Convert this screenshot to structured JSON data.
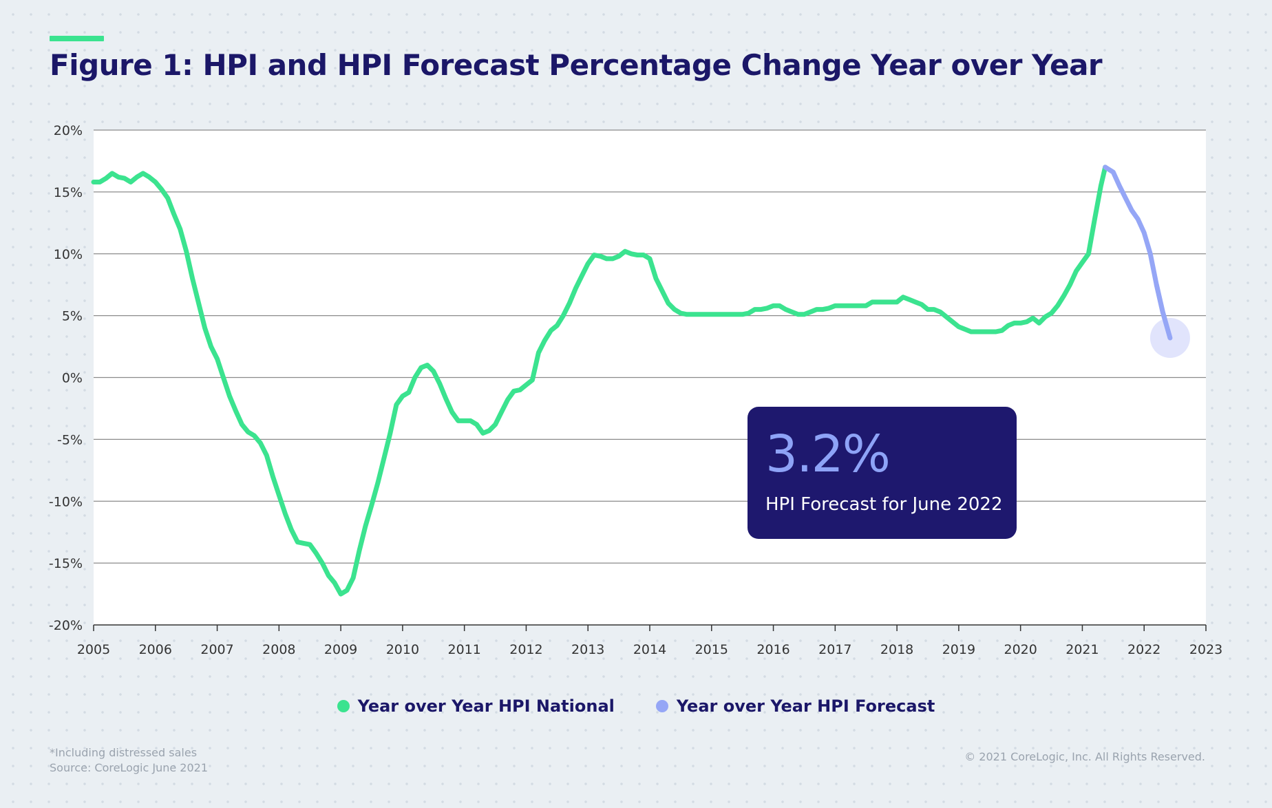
{
  "title": "Figure 1: HPI and HPI Forecast Percentage Change Year over Year",
  "callout": {
    "value": "3.2%",
    "caption": "HPI Forecast for June 2022"
  },
  "legend": [
    {
      "label": "Year over Year HPI National",
      "color": "#3be38f"
    },
    {
      "label": "Year over Year HPI Forecast",
      "color": "#95a6f6"
    }
  ],
  "footnote": {
    "line1": "*Including distressed sales",
    "line2": "Source: CoreLogic June 2021"
  },
  "copyright": "© 2021 CoreLogic, Inc. All Rights Reserved.",
  "colors": {
    "navy": "#1b1768",
    "accent_green": "#3be38f",
    "forecast_purple": "#95a6f6",
    "callout_bg": "#1e186e"
  },
  "chart_data": {
    "type": "line",
    "title": "Figure 1: HPI and HPI Forecast Percentage Change Year over Year",
    "xlim": [
      2005,
      2023
    ],
    "ylim": [
      -20,
      20
    ],
    "grid": "horizontal",
    "legend_position": "bottom-center",
    "x_ticks": [
      2005,
      2006,
      2007,
      2008,
      2009,
      2010,
      2011,
      2012,
      2013,
      2014,
      2015,
      2016,
      2017,
      2018,
      2019,
      2020,
      2021,
      2022,
      2023
    ],
    "x_tick_labels": [
      "2005",
      "2006",
      "2007",
      "2008",
      "2009",
      "2010",
      "2011",
      "2012",
      "2013",
      "2014",
      "2015",
      "2016",
      "2017",
      "2018",
      "2019",
      "2020",
      "2021",
      "2022",
      "2023"
    ],
    "y_ticks": [
      20,
      15,
      10,
      5,
      0,
      -5,
      -10,
      -15,
      -20
    ],
    "y_tick_labels": [
      "20%",
      "15%",
      "10%",
      "5%",
      "0%",
      "-5%",
      "-10%",
      "-15%",
      "-20%"
    ],
    "series": [
      {
        "name": "Year over Year HPI National",
        "color": "#3be38f",
        "points": [
          [
            2005.0,
            15.8
          ],
          [
            2005.1,
            15.8
          ],
          [
            2005.2,
            16.1
          ],
          [
            2005.3,
            16.5
          ],
          [
            2005.4,
            16.2
          ],
          [
            2005.5,
            16.1
          ],
          [
            2005.6,
            15.8
          ],
          [
            2005.7,
            16.2
          ],
          [
            2005.8,
            16.5
          ],
          [
            2005.9,
            16.2
          ],
          [
            2006.0,
            15.8
          ],
          [
            2006.1,
            15.2
          ],
          [
            2006.2,
            14.5
          ],
          [
            2006.3,
            13.2
          ],
          [
            2006.4,
            12.0
          ],
          [
            2006.5,
            10.2
          ],
          [
            2006.6,
            8.0
          ],
          [
            2006.7,
            6.0
          ],
          [
            2006.8,
            4.0
          ],
          [
            2006.9,
            2.5
          ],
          [
            2007.0,
            1.5
          ],
          [
            2007.1,
            0.0
          ],
          [
            2007.2,
            -1.5
          ],
          [
            2007.3,
            -2.7
          ],
          [
            2007.4,
            -3.8
          ],
          [
            2007.5,
            -4.4
          ],
          [
            2007.6,
            -4.7
          ],
          [
            2007.7,
            -5.3
          ],
          [
            2007.8,
            -6.3
          ],
          [
            2007.9,
            -8.0
          ],
          [
            2008.0,
            -9.5
          ],
          [
            2008.1,
            -11.0
          ],
          [
            2008.2,
            -12.3
          ],
          [
            2008.3,
            -13.3
          ],
          [
            2008.4,
            -13.4
          ],
          [
            2008.5,
            -13.5
          ],
          [
            2008.6,
            -14.2
          ],
          [
            2008.7,
            -15.0
          ],
          [
            2008.8,
            -16.0
          ],
          [
            2008.9,
            -16.6
          ],
          [
            2009.0,
            -17.5
          ],
          [
            2009.1,
            -17.2
          ],
          [
            2009.2,
            -16.2
          ],
          [
            2009.3,
            -14.0
          ],
          [
            2009.4,
            -12.0
          ],
          [
            2009.5,
            -10.3
          ],
          [
            2009.6,
            -8.5
          ],
          [
            2009.7,
            -6.5
          ],
          [
            2009.8,
            -4.5
          ],
          [
            2009.9,
            -2.2
          ],
          [
            2010.0,
            -1.5
          ],
          [
            2010.1,
            -1.2
          ],
          [
            2010.2,
            0.0
          ],
          [
            2010.3,
            0.8
          ],
          [
            2010.4,
            1.0
          ],
          [
            2010.5,
            0.5
          ],
          [
            2010.6,
            -0.5
          ],
          [
            2010.7,
            -1.7
          ],
          [
            2010.8,
            -2.8
          ],
          [
            2010.9,
            -3.5
          ],
          [
            2011.0,
            -3.5
          ],
          [
            2011.1,
            -3.5
          ],
          [
            2011.2,
            -3.8
          ],
          [
            2011.3,
            -4.5
          ],
          [
            2011.4,
            -4.3
          ],
          [
            2011.5,
            -3.8
          ],
          [
            2011.6,
            -2.8
          ],
          [
            2011.7,
            -1.8
          ],
          [
            2011.8,
            -1.1
          ],
          [
            2011.9,
            -1.0
          ],
          [
            2012.0,
            -0.6
          ],
          [
            2012.1,
            -0.2
          ],
          [
            2012.2,
            2.0
          ],
          [
            2012.3,
            3.0
          ],
          [
            2012.4,
            3.8
          ],
          [
            2012.5,
            4.2
          ],
          [
            2012.6,
            5.0
          ],
          [
            2012.7,
            6.0
          ],
          [
            2012.8,
            7.2
          ],
          [
            2012.9,
            8.2
          ],
          [
            2013.0,
            9.2
          ],
          [
            2013.1,
            9.9
          ],
          [
            2013.2,
            9.8
          ],
          [
            2013.3,
            9.6
          ],
          [
            2013.4,
            9.6
          ],
          [
            2013.5,
            9.8
          ],
          [
            2013.6,
            10.2
          ],
          [
            2013.7,
            10.0
          ],
          [
            2013.8,
            9.9
          ],
          [
            2013.9,
            9.9
          ],
          [
            2014.0,
            9.6
          ],
          [
            2014.1,
            8.0
          ],
          [
            2014.2,
            7.0
          ],
          [
            2014.3,
            6.0
          ],
          [
            2014.4,
            5.5
          ],
          [
            2014.5,
            5.2
          ],
          [
            2014.6,
            5.1
          ],
          [
            2014.7,
            5.1
          ],
          [
            2014.8,
            5.1
          ],
          [
            2014.9,
            5.1
          ],
          [
            2015.0,
            5.1
          ],
          [
            2015.2,
            5.1
          ],
          [
            2015.4,
            5.1
          ],
          [
            2015.5,
            5.1
          ],
          [
            2015.6,
            5.2
          ],
          [
            2015.7,
            5.5
          ],
          [
            2015.8,
            5.5
          ],
          [
            2015.9,
            5.6
          ],
          [
            2016.0,
            5.8
          ],
          [
            2016.1,
            5.8
          ],
          [
            2016.2,
            5.5
          ],
          [
            2016.3,
            5.3
          ],
          [
            2016.4,
            5.1
          ],
          [
            2016.5,
            5.1
          ],
          [
            2016.6,
            5.3
          ],
          [
            2016.7,
            5.5
          ],
          [
            2016.8,
            5.5
          ],
          [
            2016.9,
            5.6
          ],
          [
            2017.0,
            5.8
          ],
          [
            2017.1,
            5.8
          ],
          [
            2017.2,
            5.8
          ],
          [
            2017.3,
            5.8
          ],
          [
            2017.4,
            5.8
          ],
          [
            2017.5,
            5.8
          ],
          [
            2017.6,
            6.1
          ],
          [
            2017.7,
            6.1
          ],
          [
            2017.8,
            6.1
          ],
          [
            2017.9,
            6.1
          ],
          [
            2018.0,
            6.1
          ],
          [
            2018.1,
            6.5
          ],
          [
            2018.2,
            6.3
          ],
          [
            2018.3,
            6.1
          ],
          [
            2018.4,
            5.9
          ],
          [
            2018.5,
            5.5
          ],
          [
            2018.6,
            5.5
          ],
          [
            2018.7,
            5.3
          ],
          [
            2018.8,
            4.9
          ],
          [
            2018.9,
            4.5
          ],
          [
            2019.0,
            4.1
          ],
          [
            2019.1,
            3.9
          ],
          [
            2019.2,
            3.7
          ],
          [
            2019.3,
            3.7
          ],
          [
            2019.4,
            3.7
          ],
          [
            2019.5,
            3.7
          ],
          [
            2019.6,
            3.7
          ],
          [
            2019.7,
            3.8
          ],
          [
            2019.8,
            4.2
          ],
          [
            2019.9,
            4.4
          ],
          [
            2020.0,
            4.4
          ],
          [
            2020.1,
            4.5
          ],
          [
            2020.2,
            4.8
          ],
          [
            2020.3,
            4.4
          ],
          [
            2020.4,
            4.9
          ],
          [
            2020.5,
            5.2
          ],
          [
            2020.6,
            5.8
          ],
          [
            2020.7,
            6.6
          ],
          [
            2020.8,
            7.5
          ],
          [
            2020.9,
            8.6
          ],
          [
            2021.0,
            9.3
          ],
          [
            2021.1,
            10.0
          ],
          [
            2021.2,
            12.8
          ],
          [
            2021.3,
            15.5
          ],
          [
            2021.37,
            17.0
          ]
        ]
      },
      {
        "name": "Year over Year HPI Forecast",
        "color": "#95a6f6",
        "points": [
          [
            2021.37,
            17.0
          ],
          [
            2021.5,
            16.6
          ],
          [
            2021.6,
            15.5
          ],
          [
            2021.7,
            14.5
          ],
          [
            2021.8,
            13.5
          ],
          [
            2021.9,
            12.8
          ],
          [
            2022.0,
            11.7
          ],
          [
            2022.1,
            10.0
          ],
          [
            2022.2,
            7.5
          ],
          [
            2022.3,
            5.3
          ],
          [
            2022.42,
            3.2
          ]
        ]
      }
    ],
    "highlight_point": {
      "x": 2022.42,
      "y": 3.2,
      "label": "3.2%"
    }
  }
}
